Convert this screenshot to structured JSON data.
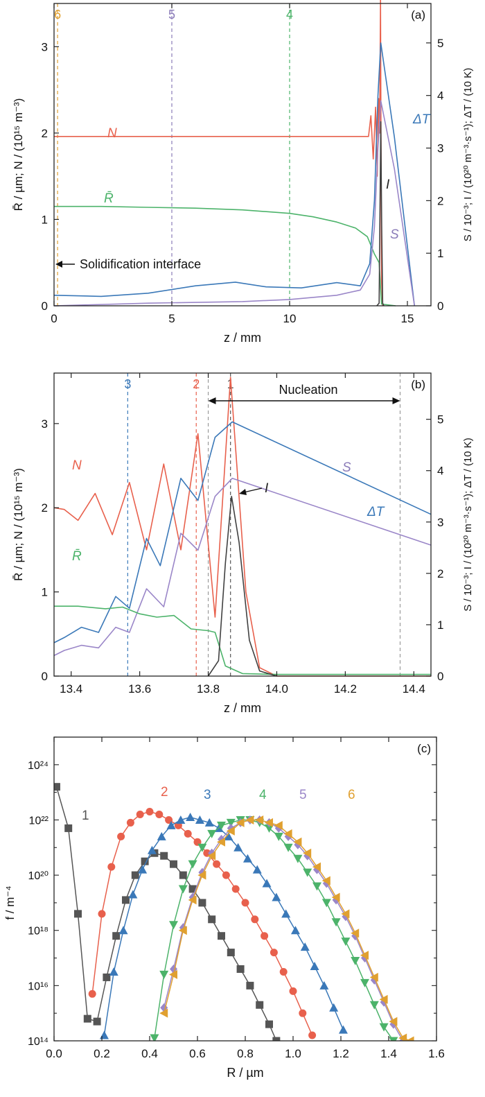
{
  "chart_data": [
    {
      "panel_label": "(a)",
      "type": "line",
      "xlabel": "z / mm",
      "ylabel_left": "R̄ / µm; N / (10¹⁵ m⁻³)",
      "ylabel_right": "S / 10⁻³; I / (10²⁰ m⁻³·s⁻¹); ΔT / (10 K)",
      "xlim": [
        0,
        16
      ],
      "ylim_left": [
        0,
        3.5
      ],
      "ylim_right": [
        0,
        5.75
      ],
      "x_ticks": [
        "0",
        "5",
        "10",
        "15"
      ],
      "y_ticks_left": [
        "0",
        "1",
        "2",
        "3"
      ],
      "y_ticks_right": [
        "0",
        "1",
        "2",
        "3",
        "4",
        "5"
      ],
      "vlines": [
        {
          "x": 0.15,
          "label": "6",
          "color": "#e0a030"
        },
        {
          "x": 5,
          "label": "5",
          "color": "#8a7bb8"
        },
        {
          "x": 10,
          "label": "4",
          "color": "#4cb36a"
        }
      ],
      "annotation": "Solidification interface",
      "series": [
        {
          "name": "N",
          "axis": "left",
          "color": "#e8604c",
          "x": [
            0,
            13.2,
            13.35,
            13.45,
            13.55,
            13.65,
            13.72,
            13.78,
            13.82,
            13.86,
            13.9,
            13.95
          ],
          "y": [
            1.96,
            1.96,
            1.96,
            2.2,
            1.7,
            2.3,
            1.5,
            2.4,
            2.0,
            3.55,
            0.3,
            0
          ]
        },
        {
          "name": "R̄",
          "axis": "left",
          "color": "#4cb36a",
          "x": [
            0,
            2,
            4,
            6,
            8,
            10,
            11,
            12,
            12.8,
            13.3,
            13.6,
            13.8,
            13.9,
            14.5
          ],
          "y": [
            1.15,
            1.15,
            1.14,
            1.13,
            1.11,
            1.07,
            1.03,
            0.97,
            0.9,
            0.8,
            0.6,
            0.5,
            0.02,
            0
          ]
        },
        {
          "name": "ΔT",
          "axis": "right",
          "color": "#3a78b8",
          "x": [
            0,
            2,
            4,
            6,
            7.7,
            9,
            10.5,
            12,
            13,
            13.4,
            13.6,
            13.75,
            13.87,
            14.45,
            15.3
          ],
          "y": [
            0.2,
            0.18,
            0.24,
            0.38,
            0.45,
            0.36,
            0.34,
            0.44,
            0.38,
            0.8,
            2.0,
            4.0,
            5.0,
            3.2,
            0
          ]
        },
        {
          "name": "S",
          "axis": "right",
          "color": "#9a86c8",
          "x": [
            0,
            4,
            8,
            10,
            12,
            13,
            13.4,
            13.6,
            13.75,
            13.87,
            14.45,
            15.3
          ],
          "y": [
            0,
            0.05,
            0.08,
            0.12,
            0.2,
            0.3,
            0.6,
            1.5,
            3.0,
            3.9,
            2.6,
            0
          ]
        },
        {
          "name": "I",
          "axis": "right",
          "color": "#404040",
          "x": [
            13.7,
            13.8,
            13.83,
            13.87,
            13.91,
            13.95,
            14.0
          ],
          "y": [
            0,
            0.05,
            1.5,
            3.5,
            1.5,
            0.05,
            0
          ]
        }
      ],
      "labels": [
        "N",
        "R̄",
        "ΔT",
        "I",
        "S"
      ]
    },
    {
      "panel_label": "(b)",
      "type": "line",
      "xlabel": "z / mm",
      "ylabel_left": "R̄ / µm; N / (10¹⁵ m⁻³)",
      "ylabel_right": "S / 10⁻³; I / (10²⁰ m⁻³·s⁻¹); ΔT / (10 K)",
      "xlim": [
        13.35,
        14.45
      ],
      "ylim_left": [
        0,
        3.6
      ],
      "ylim_right": [
        0,
        5.9
      ],
      "x_ticks": [
        "13.4",
        "13.6",
        "13.8",
        "14.0",
        "14.2",
        "14.4"
      ],
      "y_ticks_left": [
        "0",
        "1",
        "2",
        "3"
      ],
      "y_ticks_right": [
        "0",
        "1",
        "2",
        "3",
        "4",
        "5"
      ],
      "vlines": [
        {
          "x": 13.565,
          "label": "3",
          "color": "#3a78b8"
        },
        {
          "x": 13.765,
          "label": "2",
          "color": "#e8604c"
        },
        {
          "x": 13.8,
          "label": "",
          "color": "#9a9a9a"
        },
        {
          "x": 13.865,
          "label": "1",
          "color": "#555555"
        },
        {
          "x": 14.36,
          "label": "",
          "color": "#9a9a9a"
        }
      ],
      "annotation": "Nucleation",
      "series": [
        {
          "name": "N",
          "axis": "left",
          "color": "#e8604c",
          "x": [
            13.35,
            13.38,
            13.42,
            13.47,
            13.52,
            13.57,
            13.62,
            13.67,
            13.72,
            13.77,
            13.82,
            13.865,
            13.91,
            13.95,
            14.0,
            14.45
          ],
          "y": [
            2.0,
            1.98,
            1.85,
            2.17,
            1.68,
            2.3,
            1.5,
            2.52,
            1.5,
            2.88,
            0.7,
            3.55,
            1.0,
            0.1,
            0,
            0
          ]
        },
        {
          "name": "ΔT",
          "axis": "right",
          "color": "#3a78b8",
          "x": [
            13.35,
            13.38,
            13.43,
            13.48,
            13.53,
            13.57,
            13.62,
            13.66,
            13.72,
            13.77,
            13.82,
            13.87,
            14.45
          ],
          "y": [
            0.65,
            0.75,
            0.95,
            0.85,
            1.55,
            1.32,
            2.68,
            2.15,
            3.85,
            3.42,
            4.65,
            4.95,
            3.15
          ]
        },
        {
          "name": "S",
          "axis": "right",
          "color": "#9a86c8",
          "x": [
            13.35,
            13.38,
            13.43,
            13.48,
            13.53,
            13.57,
            13.62,
            13.67,
            13.72,
            13.77,
            13.82,
            13.87,
            14.45
          ],
          "y": [
            0.4,
            0.5,
            0.6,
            0.55,
            0.95,
            0.85,
            1.7,
            1.35,
            2.78,
            2.45,
            3.5,
            3.85,
            2.55
          ]
        },
        {
          "name": "R̄",
          "axis": "left",
          "color": "#4cb36a",
          "x": [
            13.35,
            13.42,
            13.5,
            13.55,
            13.6,
            13.65,
            13.7,
            13.75,
            13.8,
            13.82,
            13.85,
            13.9,
            14.0,
            14.45
          ],
          "y": [
            0.83,
            0.83,
            0.8,
            0.82,
            0.74,
            0.7,
            0.72,
            0.56,
            0.54,
            0.52,
            0.12,
            0.03,
            0.02,
            0.02
          ]
        },
        {
          "name": "I",
          "axis": "right",
          "color": "#404040",
          "x": [
            13.8,
            13.83,
            13.85,
            13.868,
            13.89,
            13.92,
            13.95,
            14.0
          ],
          "y": [
            0,
            0.3,
            2.2,
            3.5,
            2.6,
            0.7,
            0.1,
            0
          ]
        }
      ],
      "labels": [
        "N",
        "R̄",
        "ΔT",
        "S",
        "I"
      ]
    },
    {
      "panel_label": "(c)",
      "type": "scatter",
      "xlabel": "R / µm",
      "ylabel": "f / m⁻⁴",
      "xlim": [
        0,
        1.6
      ],
      "ylim": [
        100000000000000.0,
        1e+25
      ],
      "yscale": "log",
      "x_ticks": [
        "0.0",
        "0.2",
        "0.4",
        "0.6",
        "0.8",
        "1.0",
        "1.2",
        "1.4",
        "1.6"
      ],
      "y_ticks": [
        "10¹⁴",
        "10¹⁶",
        "10¹⁸",
        "10²⁰",
        "10²²",
        "10²⁴"
      ],
      "series": [
        {
          "name": "1",
          "color": "#555555",
          "marker": "square",
          "x": [
            0.01,
            0.06,
            0.1,
            0.14,
            0.18,
            0.22,
            0.26,
            0.3,
            0.34,
            0.38,
            0.42,
            0.46,
            0.5,
            0.54,
            0.58,
            0.62,
            0.66,
            0.7,
            0.74,
            0.78,
            0.82,
            0.86,
            0.9,
            0.93
          ],
          "y": [
            23.2,
            21.7,
            18.6,
            14.8,
            14.7,
            16.3,
            17.8,
            19.1,
            20.0,
            20.5,
            20.8,
            20.7,
            20.4,
            20.0,
            19.5,
            19.0,
            18.4,
            17.8,
            17.2,
            16.6,
            16.0,
            15.3,
            14.6,
            14.0
          ]
        },
        {
          "name": "2",
          "color": "#e8604c",
          "marker": "circle",
          "x": [
            0.16,
            0.2,
            0.24,
            0.28,
            0.32,
            0.36,
            0.4,
            0.44,
            0.48,
            0.52,
            0.56,
            0.6,
            0.64,
            0.68,
            0.72,
            0.76,
            0.8,
            0.84,
            0.88,
            0.92,
            0.96,
            1.0,
            1.04,
            1.08
          ],
          "y": [
            15.7,
            18.6,
            20.3,
            21.4,
            21.9,
            22.2,
            22.3,
            22.2,
            22.0,
            21.8,
            21.5,
            21.2,
            20.8,
            20.4,
            20.0,
            19.5,
            19.0,
            18.4,
            17.8,
            17.2,
            16.5,
            15.8,
            15.0,
            14.2
          ]
        },
        {
          "name": "3",
          "color": "#3a78b8",
          "marker": "triangle-up",
          "x": [
            0.21,
            0.25,
            0.29,
            0.33,
            0.37,
            0.41,
            0.45,
            0.49,
            0.53,
            0.57,
            0.61,
            0.65,
            0.69,
            0.73,
            0.77,
            0.81,
            0.85,
            0.89,
            0.93,
            0.97,
            1.01,
            1.05,
            1.09,
            1.13,
            1.17,
            1.21
          ],
          "y": [
            14.2,
            16.5,
            18.0,
            19.3,
            20.2,
            20.9,
            21.4,
            21.8,
            22.0,
            22.1,
            22.0,
            21.9,
            21.7,
            21.4,
            21.0,
            20.6,
            20.2,
            19.7,
            19.2,
            18.6,
            18.0,
            17.4,
            16.7,
            16.0,
            15.2,
            14.4
          ]
        },
        {
          "name": "4",
          "color": "#4cb36a",
          "marker": "triangle-down",
          "x": [
            0.42,
            0.46,
            0.5,
            0.54,
            0.58,
            0.62,
            0.66,
            0.7,
            0.74,
            0.78,
            0.82,
            0.86,
            0.9,
            0.94,
            0.98,
            1.02,
            1.06,
            1.1,
            1.14,
            1.18,
            1.22,
            1.26,
            1.3,
            1.34,
            1.38,
            1.42
          ],
          "y": [
            14.1,
            16.4,
            18.2,
            19.5,
            20.4,
            21.0,
            21.5,
            21.8,
            21.9,
            22.0,
            22.0,
            21.9,
            21.7,
            21.4,
            21.0,
            20.6,
            20.1,
            19.6,
            19.0,
            18.3,
            17.6,
            16.9,
            16.1,
            15.3,
            14.5,
            14.0
          ]
        },
        {
          "name": "5",
          "color": "#9a86c8",
          "marker": "diamond",
          "x": [
            0.46,
            0.5,
            0.54,
            0.58,
            0.62,
            0.66,
            0.7,
            0.74,
            0.78,
            0.82,
            0.86,
            0.9,
            0.94,
            0.98,
            1.02,
            1.06,
            1.1,
            1.14,
            1.18,
            1.22,
            1.26,
            1.3,
            1.34,
            1.38,
            1.42,
            1.46
          ],
          "y": [
            15.2,
            16.6,
            18.1,
            19.2,
            20.1,
            20.8,
            21.3,
            21.7,
            21.9,
            22.0,
            22.0,
            21.9,
            21.7,
            21.4,
            21.1,
            20.7,
            20.2,
            19.7,
            19.1,
            18.5,
            17.8,
            17.0,
            16.2,
            15.4,
            14.6,
            14.0
          ]
        },
        {
          "name": "6",
          "color": "#e0a030",
          "marker": "triangle-left",
          "x": [
            0.46,
            0.5,
            0.54,
            0.58,
            0.62,
            0.66,
            0.7,
            0.74,
            0.78,
            0.82,
            0.86,
            0.9,
            0.94,
            0.98,
            1.02,
            1.06,
            1.1,
            1.14,
            1.18,
            1.22,
            1.26,
            1.3,
            1.34,
            1.38,
            1.42,
            1.46,
            1.49
          ],
          "y": [
            15.0,
            16.4,
            18.0,
            19.1,
            20.0,
            20.7,
            21.2,
            21.6,
            21.9,
            22.0,
            22.0,
            21.9,
            21.8,
            21.5,
            21.2,
            20.8,
            20.3,
            19.8,
            19.2,
            18.6,
            17.9,
            17.1,
            16.3,
            15.5,
            14.7,
            14.1,
            14.0
          ]
        }
      ]
    }
  ]
}
